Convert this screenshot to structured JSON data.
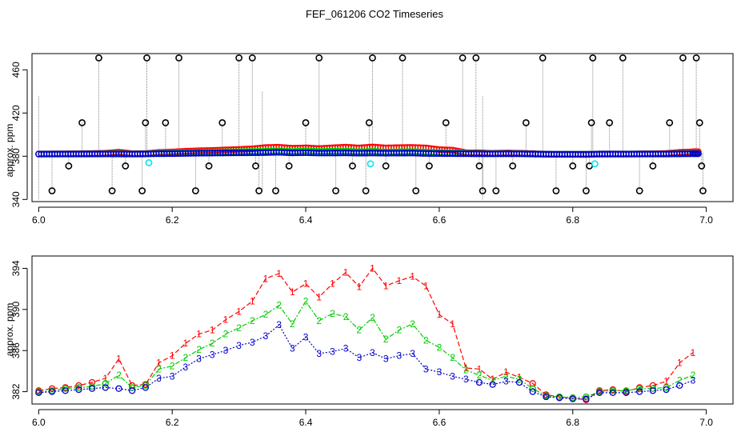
{
  "figure": {
    "title": "FEF_061206  CO2 Timeseries"
  },
  "colors": {
    "channel_1": "#ff0000",
    "channel_2": "#00cc00",
    "channel_3": "#0000cc",
    "outlier": "#000000",
    "flag": "#00e5ee",
    "connector": "#888888"
  },
  "chart_data": [
    {
      "type": "scatter",
      "ylabel": "approx. ppm",
      "xlim": [
        5.99,
        7.04
      ],
      "ylim": [
        338,
        475
      ],
      "x_ticks": [
        "6.0",
        "6.2",
        "6.4",
        "6.6",
        "6.8",
        "7.0"
      ],
      "y_ticks": [
        "340",
        "380",
        "420",
        "460"
      ],
      "grid": false,
      "outlier_levels": [
        348,
        371,
        411,
        471
      ],
      "outliers": [
        [
          6.02,
          348
        ],
        [
          6.045,
          371
        ],
        [
          6.065,
          411
        ],
        [
          6.09,
          471
        ],
        [
          6.11,
          348
        ],
        [
          6.13,
          371
        ],
        [
          6.155,
          348
        ],
        [
          6.16,
          411
        ],
        [
          6.162,
          471
        ],
        [
          6.19,
          411
        ],
        [
          6.21,
          471
        ],
        [
          6.235,
          348
        ],
        [
          6.255,
          371
        ],
        [
          6.275,
          411
        ],
        [
          6.3,
          471
        ],
        [
          6.32,
          471
        ],
        [
          6.325,
          371
        ],
        [
          6.33,
          348
        ],
        [
          6.355,
          348
        ],
        [
          6.375,
          371
        ],
        [
          6.4,
          411
        ],
        [
          6.42,
          471
        ],
        [
          6.445,
          348
        ],
        [
          6.47,
          371
        ],
        [
          6.49,
          348
        ],
        [
          6.495,
          411
        ],
        [
          6.5,
          471
        ],
        [
          6.52,
          371
        ],
        [
          6.545,
          471
        ],
        [
          6.565,
          348
        ],
        [
          6.585,
          371
        ],
        [
          6.61,
          411
        ],
        [
          6.635,
          471
        ],
        [
          6.655,
          471
        ],
        [
          6.66,
          371
        ],
        [
          6.665,
          348
        ],
        [
          6.685,
          348
        ],
        [
          6.71,
          371
        ],
        [
          6.73,
          411
        ],
        [
          6.755,
          471
        ],
        [
          6.775,
          348
        ],
        [
          6.8,
          371
        ],
        [
          6.82,
          348
        ],
        [
          6.825,
          371
        ],
        [
          6.828,
          411
        ],
        [
          6.83,
          471
        ],
        [
          6.855,
          411
        ],
        [
          6.875,
          471
        ],
        [
          6.9,
          348
        ],
        [
          6.92,
          371
        ],
        [
          6.945,
          411
        ],
        [
          6.965,
          471
        ],
        [
          6.985,
          471
        ],
        [
          6.99,
          411
        ],
        [
          6.993,
          371
        ],
        [
          6.995,
          348
        ]
      ],
      "flags": [
        [
          6.165,
          374
        ],
        [
          6.497,
          373
        ],
        [
          6.833,
          373
        ]
      ],
      "stray_lines": [
        [
          6.0,
          340,
          436
        ],
        [
          6.335,
          350,
          440
        ],
        [
          6.665,
          340,
          436
        ]
      ]
    },
    {
      "type": "line",
      "ylabel": "approx. ppm",
      "xlim": [
        5.99,
        7.04
      ],
      "ylim": [
        380.8,
        395.2
      ],
      "x_ticks": [
        "6.0",
        "6.2",
        "6.4",
        "6.6",
        "6.8",
        "7.0"
      ],
      "y_ticks": [
        "382",
        "386",
        "390",
        "394"
      ],
      "grid": false,
      "x": [
        6.0,
        6.02,
        6.04,
        6.06,
        6.08,
        6.1,
        6.12,
        6.14,
        6.16,
        6.18,
        6.2,
        6.22,
        6.24,
        6.26,
        6.28,
        6.3,
        6.32,
        6.34,
        6.36,
        6.38,
        6.4,
        6.42,
        6.44,
        6.46,
        6.48,
        6.5,
        6.52,
        6.54,
        6.56,
        6.58,
        6.6,
        6.62,
        6.64,
        6.66,
        6.68,
        6.7,
        6.72,
        6.74,
        6.76,
        6.78,
        6.8,
        6.82,
        6.84,
        6.86,
        6.88,
        6.9,
        6.92,
        6.94,
        6.96,
        6.98
      ],
      "series": [
        {
          "name": "1",
          "values": [
            382.1,
            382.3,
            382.4,
            382.6,
            382.9,
            383.3,
            385.2,
            382.6,
            382.7,
            384.8,
            385.5,
            386.7,
            387.6,
            388.0,
            389.0,
            389.8,
            390.8,
            393.0,
            393.5,
            391.7,
            392.5,
            391.2,
            392.5,
            393.6,
            392.2,
            394.0,
            392.3,
            392.8,
            393.2,
            392.3,
            389.5,
            388.6,
            384.3,
            384.2,
            383.2,
            383.9,
            383.4,
            382.8,
            381.7,
            381.5,
            381.4,
            381.2,
            382.1,
            382.2,
            382.0,
            382.4,
            382.6,
            383.0,
            384.8,
            385.8
          ]
        },
        {
          "name": "2",
          "values": [
            382.0,
            382.1,
            382.3,
            382.4,
            382.5,
            382.8,
            383.6,
            382.4,
            382.6,
            384.2,
            384.5,
            385.3,
            386.1,
            386.7,
            387.6,
            388.2,
            388.9,
            389.5,
            390.4,
            388.6,
            390.8,
            388.9,
            389.6,
            389.3,
            388.0,
            389.2,
            387.1,
            388.0,
            388.6,
            387.0,
            386.3,
            385.3,
            384.1,
            383.6,
            383.1,
            383.5,
            383.2,
            382.3,
            381.6,
            381.5,
            381.4,
            381.5,
            382.0,
            382.1,
            382.1,
            382.3,
            382.3,
            382.4,
            383.1,
            383.6
          ]
        },
        {
          "name": "3",
          "values": [
            381.9,
            382.0,
            382.1,
            382.2,
            382.3,
            382.4,
            382.3,
            382.1,
            382.4,
            383.3,
            383.5,
            384.4,
            385.2,
            385.6,
            386.0,
            386.5,
            386.8,
            387.4,
            388.5,
            386.2,
            387.3,
            385.7,
            385.9,
            386.2,
            385.3,
            385.8,
            385.2,
            385.5,
            385.7,
            384.2,
            383.9,
            383.5,
            383.2,
            382.9,
            382.7,
            383.0,
            382.9,
            382.0,
            381.5,
            381.4,
            381.3,
            381.3,
            381.9,
            381.9,
            381.9,
            382.0,
            382.1,
            382.2,
            382.6,
            383.1
          ]
        }
      ]
    }
  ]
}
